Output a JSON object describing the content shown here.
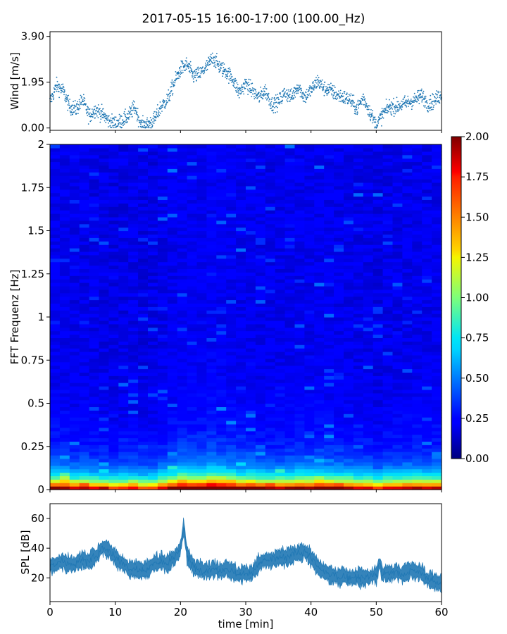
{
  "figure": {
    "title": "2017-05-15 16:00-17:00 (100.00_Hz)"
  },
  "chart_data": [
    {
      "type": "scatter",
      "panel": "wind",
      "ylabel": "Wind [m/s]",
      "xlabel": "",
      "xlim": [
        0,
        60
      ],
      "ylim": [
        -0.1,
        4.1
      ],
      "yticks": [
        0.0,
        1.95,
        3.9
      ],
      "ytick_labels": [
        "0.00",
        "1.95",
        "3.90"
      ],
      "marker_color": "#1f77b4",
      "x": [
        0,
        1,
        2,
        3,
        4,
        5,
        6,
        7,
        8,
        9,
        10,
        11,
        12,
        13,
        14,
        15,
        16,
        17,
        18,
        19,
        20,
        21,
        22,
        23,
        24,
        25,
        26,
        27,
        28,
        29,
        30,
        31,
        32,
        33,
        34,
        35,
        36,
        37,
        38,
        39,
        40,
        41,
        42,
        43,
        44,
        45,
        46,
        47,
        48,
        49,
        50,
        51,
        52,
        53,
        54,
        55,
        56,
        57,
        58,
        59,
        60
      ],
      "y": [
        1.1,
        1.8,
        1.6,
        0.9,
        0.8,
        1.2,
        0.5,
        0.8,
        0.6,
        0.3,
        0.2,
        0.3,
        0.5,
        0.9,
        0.1,
        0.15,
        0.35,
        0.9,
        1.2,
        1.9,
        2.5,
        2.7,
        2.2,
        2.3,
        2.6,
        3.0,
        2.6,
        2.4,
        2.1,
        1.5,
        1.9,
        1.6,
        1.3,
        1.6,
        1.0,
        1.1,
        1.5,
        1.3,
        1.8,
        1.3,
        1.6,
        2.0,
        1.7,
        1.6,
        1.4,
        1.3,
        1.2,
        0.8,
        1.3,
        0.7,
        0.1,
        0.6,
        0.9,
        0.9,
        1.0,
        1.1,
        1.2,
        1.4,
        1.0,
        1.2,
        1.4
      ]
    },
    {
      "type": "heatmap",
      "panel": "spectrogram",
      "ylabel": "FFT Frequenz [Hz]",
      "xlabel": "",
      "xlim": [
        0,
        60
      ],
      "ylim": [
        0,
        2
      ],
      "yticks": [
        0,
        0.25,
        0.5,
        0.75,
        1,
        1.25,
        1.5,
        1.75,
        2
      ],
      "ytick_labels": [
        "0",
        "0.25",
        "0.5",
        "0.75",
        "1",
        "1.25",
        "1.5",
        "1.75",
        "2"
      ],
      "colormap": "jet",
      "clim": [
        0.0,
        2.0
      ],
      "colorbar_ticks": [
        "0.00",
        "0.25",
        "0.50",
        "0.75",
        "1.00",
        "1.25",
        "1.50",
        "1.75",
        "2.00"
      ]
    },
    {
      "type": "area",
      "panel": "spl",
      "ylabel": "SPL [dB]",
      "xlabel": "time [min]",
      "xlim": [
        0,
        60
      ],
      "ylim": [
        4,
        70
      ],
      "yticks": [
        20,
        40,
        60
      ],
      "xticks": [
        0,
        10,
        20,
        30,
        40,
        50,
        60
      ],
      "xtick_labels": [
        "0",
        "10",
        "20",
        "30",
        "40",
        "50",
        "60"
      ],
      "color": "#1f77b4",
      "x": [
        0,
        1,
        2,
        3,
        4,
        5,
        6,
        7,
        8,
        9,
        10,
        11,
        12,
        13,
        14,
        15,
        16,
        17,
        18,
        19,
        20,
        20.5,
        21,
        22,
        23,
        24,
        25,
        26,
        27,
        28,
        29,
        30,
        31,
        32,
        33,
        34,
        35,
        36,
        37,
        38,
        39,
        40,
        41,
        42,
        43,
        44,
        45,
        46,
        47,
        48,
        49,
        50,
        50.5,
        51,
        52,
        53,
        54,
        55,
        56,
        57,
        58,
        59,
        60
      ],
      "y": [
        28,
        30,
        31,
        29,
        30,
        32,
        31,
        35,
        40,
        39,
        34,
        30,
        27,
        26,
        25,
        26,
        30,
        31,
        30,
        33,
        40,
        55,
        35,
        27,
        26,
        25,
        26,
        25,
        27,
        24,
        22,
        23,
        24,
        29,
        32,
        31,
        34,
        33,
        35,
        37,
        38,
        34,
        27,
        24,
        22,
        21,
        21,
        20,
        21,
        20,
        21,
        22,
        30,
        22,
        23,
        24,
        22,
        25,
        24,
        23,
        19,
        17,
        17
      ]
    }
  ]
}
